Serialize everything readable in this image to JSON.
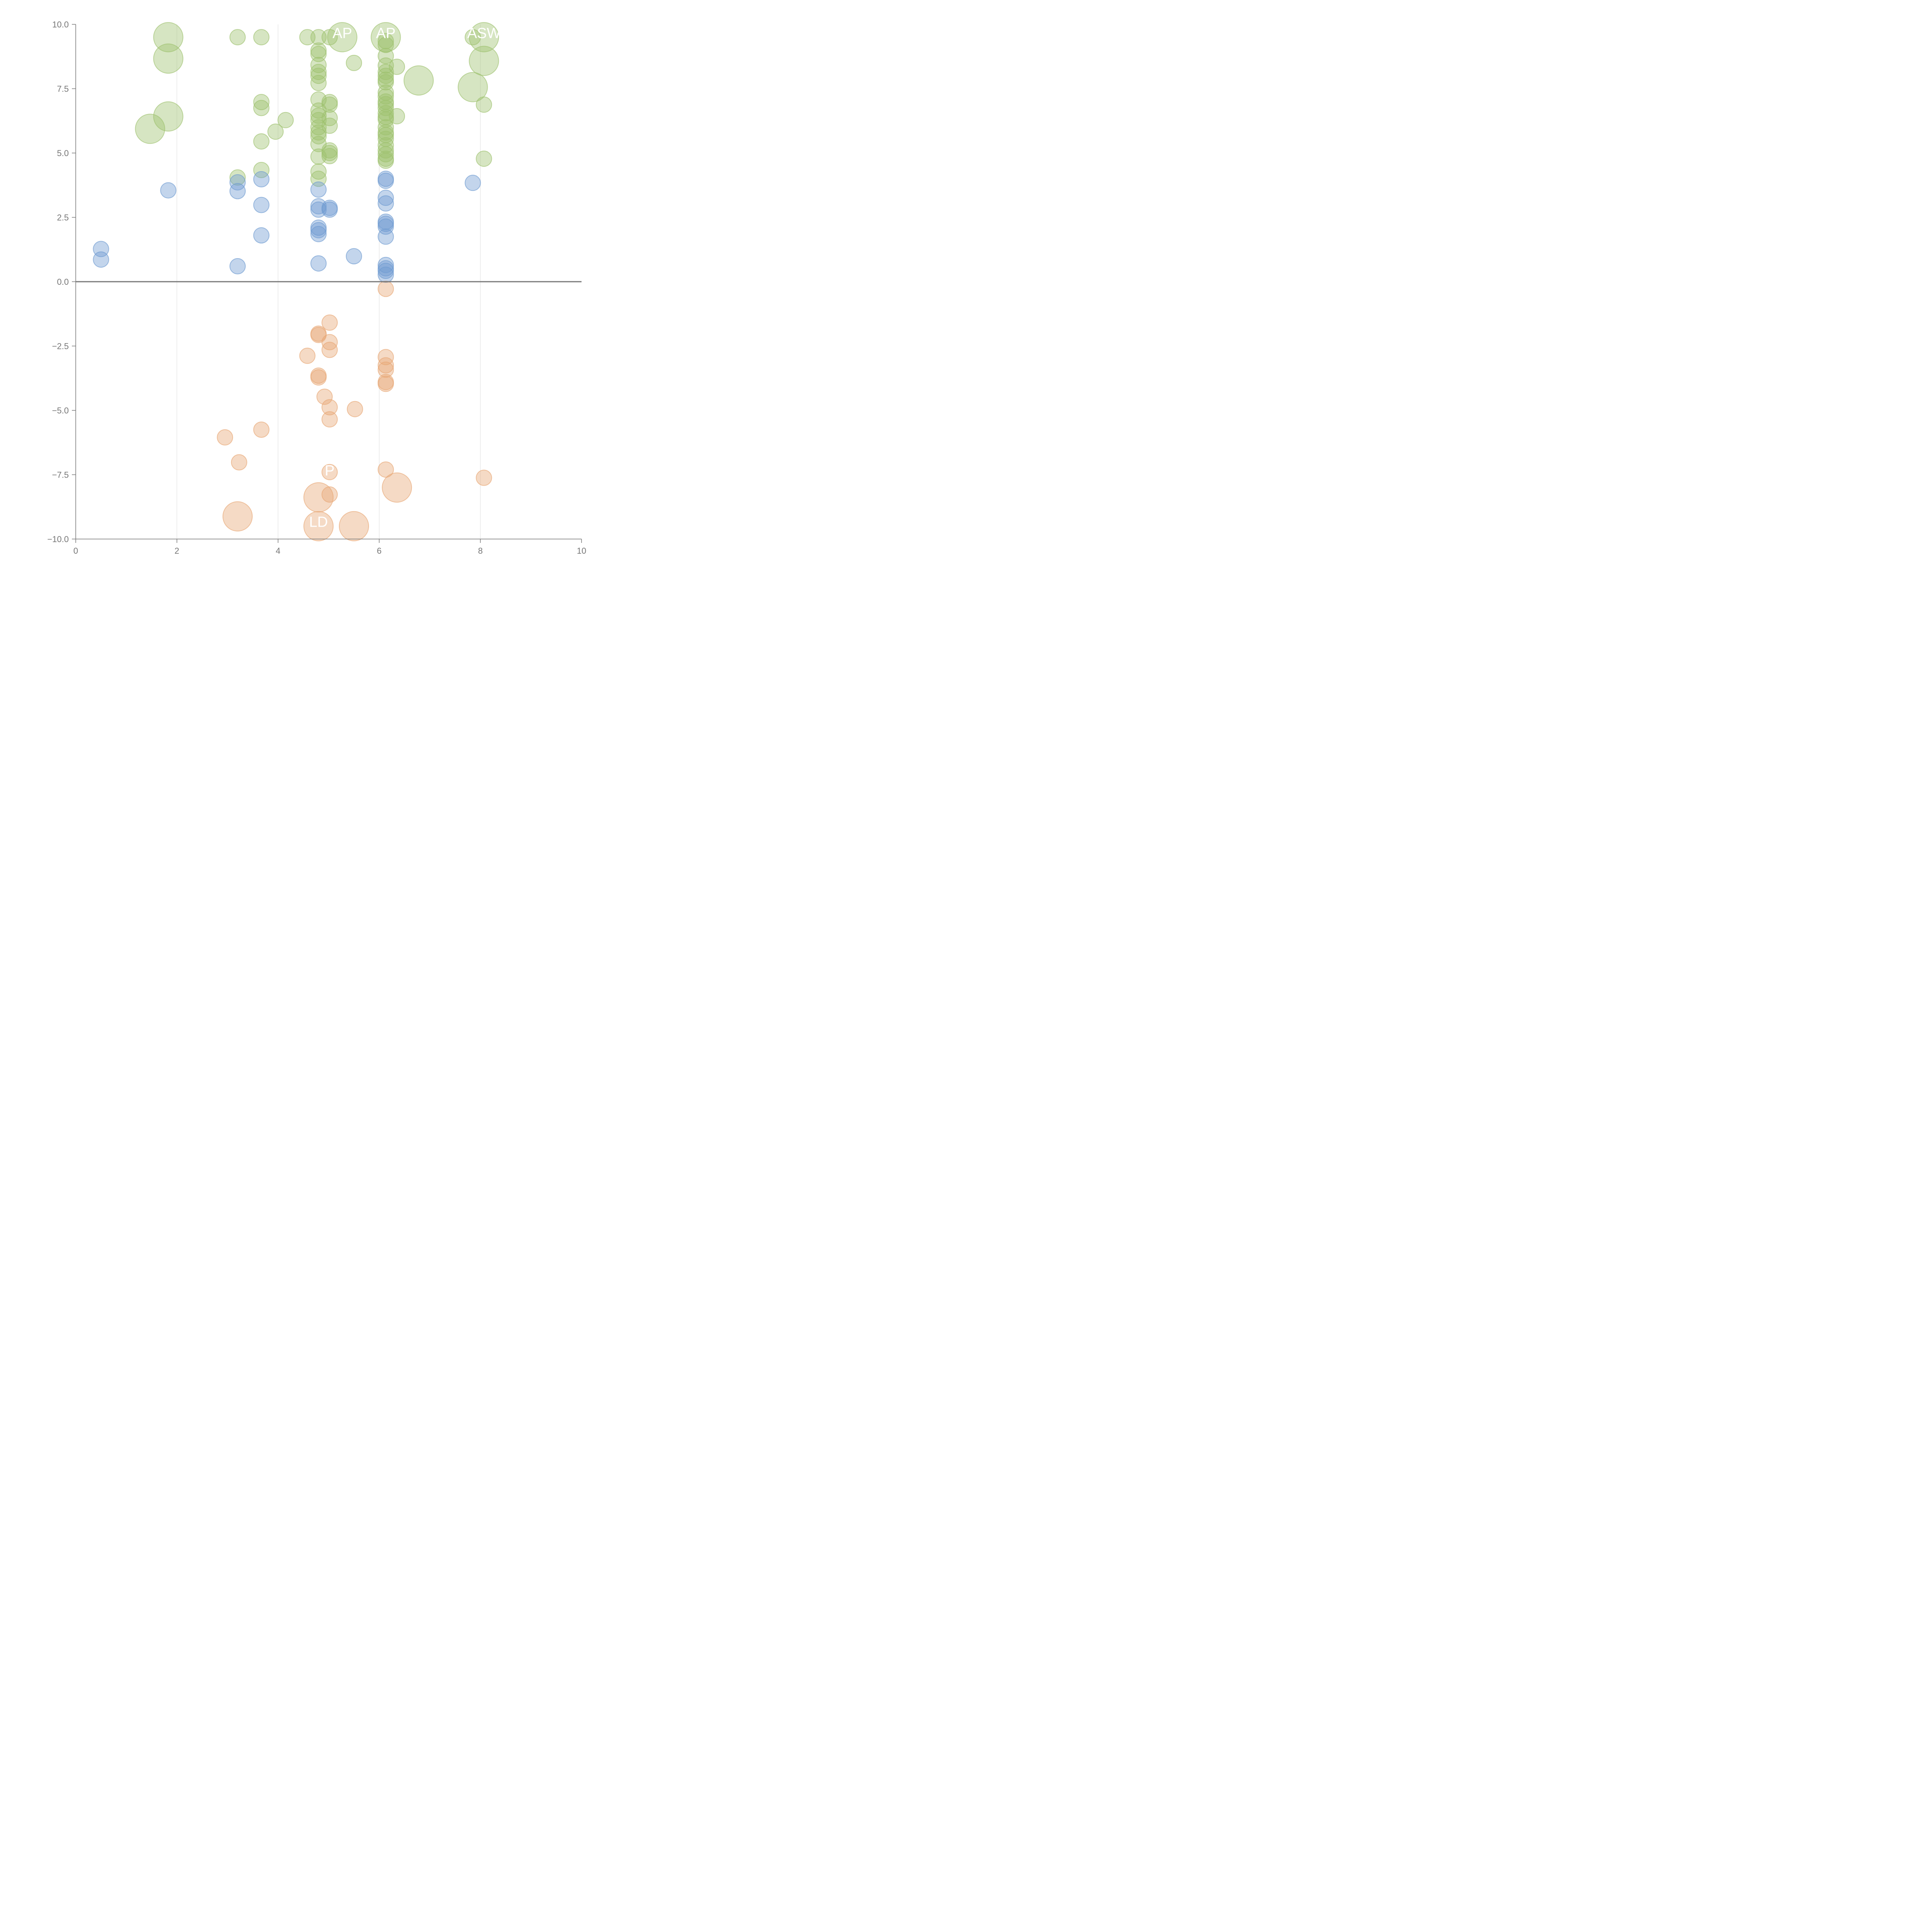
{
  "chart_data": {
    "type": "scatter",
    "title": "",
    "xlabel": "",
    "ylabel": "",
    "xlim": [
      0,
      10
    ],
    "ylim": [
      -10,
      10
    ],
    "x_ticks": [
      0,
      2,
      4,
      6,
      8,
      10
    ],
    "x_tick_labels": [
      "0",
      "2",
      "4",
      "6",
      "8",
      "10"
    ],
    "y_ticks": [
      10,
      7.5,
      5,
      2.5,
      0,
      -2.5,
      -5,
      -7.5,
      -10
    ],
    "y_tick_labels": [
      "10.0",
      "7.5",
      "5.0",
      "2.5",
      "0.0",
      "−2.5",
      "−5.0",
      "−7.5",
      "−10.0"
    ],
    "vertical_gridlines_at": [
      2,
      4,
      6,
      8
    ],
    "zero_line": true,
    "legend": "none",
    "series": [
      {
        "color": "#9ec16e",
        "points": [
          [
            1.83,
            9.5
          ],
          [
            1.83,
            8.67
          ],
          [
            1.83,
            6.42
          ],
          [
            1.47,
            5.94
          ],
          [
            3.2,
            9.5
          ],
          [
            3.2,
            4.05
          ],
          [
            3.67,
            9.5
          ],
          [
            3.67,
            6.98
          ],
          [
            3.67,
            6.75
          ],
          [
            3.67,
            5.45
          ],
          [
            3.67,
            4.34
          ],
          [
            3.95,
            5.83
          ],
          [
            4.15,
            6.28
          ],
          [
            4.58,
            9.5
          ],
          [
            4.8,
            9.5
          ],
          [
            4.8,
            8.98
          ],
          [
            4.8,
            8.85
          ],
          [
            4.8,
            8.42
          ],
          [
            4.8,
            8.15
          ],
          [
            4.8,
            8.0
          ],
          [
            4.8,
            7.72
          ],
          [
            4.8,
            7.08
          ],
          [
            4.8,
            6.65
          ],
          [
            4.8,
            6.45
          ],
          [
            4.8,
            6.28
          ],
          [
            4.8,
            6.0
          ],
          [
            4.8,
            5.8
          ],
          [
            4.8,
            5.65
          ],
          [
            4.8,
            5.35
          ],
          [
            4.8,
            4.86
          ],
          [
            4.8,
            4.28
          ],
          [
            4.8,
            4.0
          ],
          [
            5.02,
            9.5
          ],
          [
            5.02,
            6.98
          ],
          [
            5.02,
            6.88
          ],
          [
            5.02,
            6.36
          ],
          [
            5.02,
            6.06
          ],
          [
            5.02,
            5.1
          ],
          [
            5.02,
            5.0
          ],
          [
            5.02,
            4.88
          ],
          [
            5.27,
            9.5
          ],
          [
            5.5,
            8.5
          ],
          [
            6.13,
            9.5
          ],
          [
            6.13,
            9.35
          ],
          [
            6.13,
            9.2
          ],
          [
            6.13,
            8.77
          ],
          [
            6.13,
            8.4
          ],
          [
            6.13,
            8.15
          ],
          [
            6.13,
            8.0
          ],
          [
            6.13,
            7.85
          ],
          [
            6.13,
            7.75
          ],
          [
            6.13,
            7.35
          ],
          [
            6.13,
            7.2
          ],
          [
            6.13,
            7.0
          ],
          [
            6.13,
            6.9
          ],
          [
            6.13,
            6.75
          ],
          [
            6.13,
            6.55
          ],
          [
            6.13,
            6.4
          ],
          [
            6.13,
            6.3
          ],
          [
            6.13,
            6.0
          ],
          [
            6.13,
            5.8
          ],
          [
            6.13,
            5.7
          ],
          [
            6.13,
            5.55
          ],
          [
            6.13,
            5.3
          ],
          [
            6.13,
            5.1
          ],
          [
            6.13,
            4.95
          ],
          [
            6.13,
            4.78
          ],
          [
            6.13,
            4.7
          ],
          [
            6.35,
            8.35
          ],
          [
            6.35,
            6.43
          ],
          [
            6.78,
            7.82
          ],
          [
            7.85,
            9.5
          ],
          [
            7.85,
            7.56
          ],
          [
            8.07,
            9.5
          ],
          [
            8.07,
            8.58
          ],
          [
            8.07,
            6.88
          ],
          [
            8.07,
            4.78
          ]
        ],
        "sizes": [
          1,
          1,
          1,
          1,
          0,
          0,
          0,
          0,
          0,
          0,
          0,
          0,
          0,
          0,
          0,
          0,
          0,
          0,
          0,
          0,
          0,
          0,
          0,
          0,
          0,
          0,
          0,
          0,
          0,
          0,
          0,
          0,
          0,
          0,
          0,
          0,
          0,
          0,
          0,
          0,
          1,
          0,
          1,
          0,
          0,
          0,
          0,
          0,
          0,
          0,
          0,
          0,
          0,
          0,
          0,
          0,
          0,
          0,
          0,
          0,
          0,
          0,
          0,
          0,
          0,
          0,
          0,
          0,
          0,
          0,
          1,
          0,
          1,
          1,
          1,
          0,
          0
        ]
      },
      {
        "color": "#6f9bd1",
        "points": [
          [
            0.5,
            1.27
          ],
          [
            0.5,
            0.86
          ],
          [
            1.83,
            3.55
          ],
          [
            3.2,
            3.86
          ],
          [
            3.2,
            3.52
          ],
          [
            3.2,
            0.6
          ],
          [
            3.67,
            3.98
          ],
          [
            3.67,
            2.98
          ],
          [
            3.67,
            1.8
          ],
          [
            4.8,
            3.58
          ],
          [
            4.8,
            2.93
          ],
          [
            4.8,
            2.8
          ],
          [
            4.8,
            2.1
          ],
          [
            4.8,
            2.0
          ],
          [
            4.8,
            1.85
          ],
          [
            4.8,
            0.71
          ],
          [
            5.02,
            2.87
          ],
          [
            5.02,
            2.8
          ],
          [
            5.5,
            0.99
          ],
          [
            6.13,
            4.0
          ],
          [
            6.13,
            3.92
          ],
          [
            6.13,
            3.26
          ],
          [
            6.13,
            3.04
          ],
          [
            6.13,
            2.33
          ],
          [
            6.13,
            2.25
          ],
          [
            6.13,
            2.14
          ],
          [
            6.13,
            1.75
          ],
          [
            6.13,
            0.65
          ],
          [
            6.13,
            0.52
          ],
          [
            6.13,
            0.42
          ],
          [
            6.13,
            0.27
          ],
          [
            7.85,
            3.84
          ]
        ],
        "sizes": [
          0,
          0,
          0,
          0,
          0,
          0,
          0,
          0,
          0,
          0,
          0,
          0,
          0,
          0,
          0,
          0,
          0,
          0,
          0,
          0,
          0,
          0,
          0,
          0,
          0,
          0,
          0,
          0,
          0,
          0,
          0,
          0
        ]
      },
      {
        "color": "#e8a774",
        "points": [
          [
            2.95,
            -6.05
          ],
          [
            3.2,
            -9.12
          ],
          [
            3.23,
            -7.02
          ],
          [
            3.67,
            -5.75
          ],
          [
            4.58,
            -2.88
          ],
          [
            4.8,
            -2.02
          ],
          [
            4.8,
            -2.07
          ],
          [
            4.8,
            -3.65
          ],
          [
            4.8,
            -3.72
          ],
          [
            4.8,
            -8.38
          ],
          [
            4.8,
            -9.5
          ],
          [
            4.92,
            -4.47
          ],
          [
            5.02,
            -1.59
          ],
          [
            5.02,
            -2.35
          ],
          [
            5.02,
            -2.65
          ],
          [
            5.02,
            -4.88
          ],
          [
            5.02,
            -5.35
          ],
          [
            5.02,
            -7.4
          ],
          [
            5.02,
            -8.27
          ],
          [
            5.5,
            -9.5
          ],
          [
            5.52,
            -4.95
          ],
          [
            6.13,
            -0.28
          ],
          [
            6.13,
            -2.93
          ],
          [
            6.13,
            -3.25
          ],
          [
            6.13,
            -3.42
          ],
          [
            6.13,
            -3.9
          ],
          [
            6.13,
            -3.97
          ],
          [
            6.13,
            -7.3
          ],
          [
            6.35,
            -8.0
          ],
          [
            8.07,
            -7.62
          ]
        ],
        "sizes": [
          0,
          1,
          0,
          0,
          0,
          0,
          0,
          0,
          0,
          1,
          1,
          0,
          0,
          0,
          0,
          0,
          0,
          0,
          0,
          1,
          0,
          0,
          0,
          0,
          0,
          0,
          0,
          0,
          1,
          0
        ]
      }
    ],
    "annotations": [
      {
        "text": "AP",
        "x": 5.27,
        "y": 9.5
      },
      {
        "text": "AP",
        "x": 6.13,
        "y": 9.5
      },
      {
        "text": "ASW",
        "x": 8.07,
        "y": 9.5
      },
      {
        "text": "LD",
        "x": 4.8,
        "y": -9.5
      },
      {
        "text": "P",
        "x": 5.02,
        "y": -7.5
      }
    ]
  }
}
